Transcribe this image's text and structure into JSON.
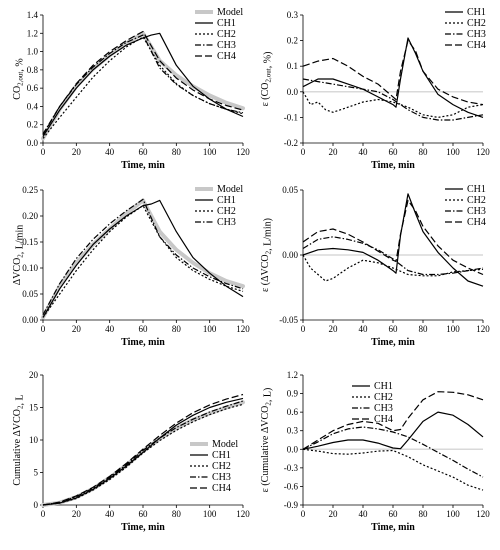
{
  "chart_data": [
    {
      "type": "line",
      "xlabel": "Time, min",
      "ylabel": "CO2,out, %",
      "xlim": [
        0,
        120
      ],
      "ylim": [
        0,
        1.4
      ],
      "xticks": [
        "0",
        "20",
        "40",
        "60",
        "80",
        "100",
        "120"
      ],
      "yticks": [
        "0.0",
        "0.2",
        "0.4",
        "0.6",
        "0.8",
        "1.0",
        "1.2",
        "1.4"
      ],
      "legend_position": "top-right",
      "series": [
        {
          "name": "Model",
          "style": "model",
          "x": [
            0,
            10,
            20,
            30,
            40,
            50,
            60,
            70,
            80,
            90,
            100,
            110,
            120
          ],
          "y": [
            0.05,
            0.37,
            0.62,
            0.81,
            0.96,
            1.09,
            1.2,
            0.9,
            0.74,
            0.62,
            0.52,
            0.44,
            0.38
          ]
        },
        {
          "name": "CH1",
          "style": "solid",
          "x": [
            0,
            10,
            20,
            30,
            40,
            50,
            60,
            65,
            70,
            80,
            90,
            100,
            110,
            120
          ],
          "y": [
            0.07,
            0.36,
            0.6,
            0.8,
            0.95,
            1.07,
            1.15,
            1.18,
            1.2,
            0.85,
            0.62,
            0.48,
            0.37,
            0.29
          ]
        },
        {
          "name": "CH2",
          "style": "short-dash",
          "x": [
            0,
            10,
            20,
            30,
            40,
            50,
            60,
            70,
            80,
            90,
            100,
            110,
            120
          ],
          "y": [
            0.05,
            0.28,
            0.5,
            0.72,
            0.9,
            1.05,
            1.16,
            0.85,
            0.65,
            0.52,
            0.43,
            0.37,
            0.32
          ]
        },
        {
          "name": "CH3",
          "style": "dash-dot",
          "x": [
            0,
            10,
            20,
            30,
            40,
            50,
            60,
            70,
            80,
            90,
            100,
            110,
            120
          ],
          "y": [
            0.1,
            0.4,
            0.64,
            0.83,
            0.98,
            1.1,
            1.18,
            0.82,
            0.64,
            0.52,
            0.43,
            0.37,
            0.33
          ]
        },
        {
          "name": "CH4",
          "style": "long-dash",
          "x": [
            0,
            10,
            20,
            30,
            40,
            50,
            60,
            70,
            80,
            90,
            100,
            110,
            120
          ],
          "y": [
            0.09,
            0.4,
            0.65,
            0.85,
            1.0,
            1.12,
            1.22,
            0.9,
            0.71,
            0.58,
            0.48,
            0.41,
            0.36
          ]
        }
      ]
    },
    {
      "type": "line",
      "xlabel": "Time, min",
      "ylabel": "ε (CO2,out, %)",
      "xlim": [
        0,
        120
      ],
      "ylim": [
        -0.2,
        0.3
      ],
      "xticks": [
        "0",
        "20",
        "40",
        "60",
        "80",
        "100",
        "120"
      ],
      "yticks": [
        "-0.2",
        "-0.1",
        "0.0",
        "0.1",
        "0.2",
        "0.3"
      ],
      "legend_position": "top-right",
      "series": [
        {
          "name": "CH1",
          "style": "solid",
          "x": [
            0,
            10,
            20,
            30,
            40,
            50,
            60,
            62,
            65,
            70,
            75,
            80,
            90,
            100,
            110,
            120
          ],
          "y": [
            0.02,
            0.05,
            0.05,
            0.03,
            0.01,
            -0.02,
            -0.05,
            -0.06,
            0.05,
            0.21,
            0.15,
            0.08,
            -0.01,
            -0.05,
            -0.08,
            -0.1
          ]
        },
        {
          "name": "CH2",
          "style": "short-dash",
          "x": [
            0,
            5,
            10,
            15,
            20,
            30,
            40,
            50,
            60,
            70,
            80,
            90,
            100,
            110,
            120
          ],
          "y": [
            0.0,
            -0.05,
            -0.04,
            -0.07,
            -0.08,
            -0.06,
            -0.04,
            -0.03,
            -0.04,
            -0.06,
            -0.09,
            -0.1,
            -0.09,
            -0.06,
            -0.05
          ]
        },
        {
          "name": "CH3",
          "style": "dash-dot",
          "x": [
            0,
            10,
            20,
            30,
            40,
            50,
            60,
            70,
            80,
            90,
            100,
            110,
            120
          ],
          "y": [
            0.05,
            0.04,
            0.03,
            0.02,
            0.01,
            0.0,
            -0.03,
            -0.07,
            -0.1,
            -0.11,
            -0.11,
            -0.1,
            -0.09
          ]
        },
        {
          "name": "CH4",
          "style": "long-dash",
          "x": [
            0,
            10,
            20,
            30,
            40,
            50,
            60,
            62,
            65,
            70,
            75,
            80,
            90,
            100,
            110,
            120
          ],
          "y": [
            0.1,
            0.12,
            0.13,
            0.1,
            0.06,
            0.03,
            -0.02,
            -0.03,
            0.08,
            0.2,
            0.16,
            0.08,
            0.01,
            -0.02,
            -0.04,
            -0.05
          ]
        }
      ]
    },
    {
      "type": "line",
      "xlabel": "Time, min",
      "ylabel": "ΔVCO2, L/min",
      "xlim": [
        0,
        120
      ],
      "ylim": [
        0,
        0.25
      ],
      "xticks": [
        "0",
        "20",
        "40",
        "60",
        "80",
        "100",
        "120"
      ],
      "yticks": [
        "0.00",
        "0.05",
        "0.10",
        "0.15",
        "0.20",
        "0.25"
      ],
      "legend_position": "top-right",
      "series": [
        {
          "name": "Model",
          "style": "model",
          "x": [
            0,
            10,
            20,
            30,
            40,
            50,
            60,
            70,
            80,
            90,
            100,
            110,
            120
          ],
          "y": [
            0.005,
            0.065,
            0.11,
            0.145,
            0.175,
            0.205,
            0.23,
            0.17,
            0.135,
            0.11,
            0.09,
            0.075,
            0.065
          ]
        },
        {
          "name": "CH1",
          "style": "solid",
          "x": [
            0,
            10,
            20,
            30,
            40,
            50,
            60,
            65,
            70,
            80,
            90,
            100,
            110,
            120
          ],
          "y": [
            0.005,
            0.06,
            0.105,
            0.145,
            0.175,
            0.2,
            0.22,
            0.223,
            0.23,
            0.17,
            0.12,
            0.09,
            0.065,
            0.045
          ]
        },
        {
          "name": "CH2",
          "style": "short-dash",
          "x": [
            0,
            10,
            20,
            30,
            40,
            50,
            60,
            70,
            80,
            90,
            100,
            110,
            120
          ],
          "y": [
            0.005,
            0.05,
            0.095,
            0.135,
            0.17,
            0.198,
            0.22,
            0.16,
            0.12,
            0.095,
            0.078,
            0.065,
            0.055
          ]
        },
        {
          "name": "CH3",
          "style": "dash-dot",
          "x": [
            0,
            10,
            20,
            30,
            40,
            50,
            60,
            70,
            80,
            90,
            100,
            110,
            120
          ],
          "y": [
            0.01,
            0.07,
            0.118,
            0.155,
            0.185,
            0.21,
            0.232,
            0.16,
            0.125,
            0.1,
            0.083,
            0.07,
            0.06
          ]
        }
      ]
    },
    {
      "type": "line",
      "xlabel": "Time, min",
      "ylabel": "ε (ΔVCO2, L/min)",
      "xlim": [
        0,
        120
      ],
      "ylim": [
        -0.05,
        0.05
      ],
      "xticks": [
        "0",
        "20",
        "40",
        "60",
        "80",
        "100",
        "120"
      ],
      "yticks": [
        "-0.05",
        "0.00",
        "0.05"
      ],
      "legend_position": "top-right",
      "series": [
        {
          "name": "CH1",
          "style": "solid",
          "x": [
            0,
            10,
            20,
            30,
            40,
            50,
            60,
            62,
            65,
            70,
            75,
            80,
            90,
            100,
            110,
            120
          ],
          "y": [
            0.0,
            0.004,
            0.005,
            0.004,
            0.002,
            -0.004,
            -0.012,
            -0.014,
            0.015,
            0.047,
            0.032,
            0.018,
            0.002,
            -0.01,
            -0.02,
            -0.024
          ]
        },
        {
          "name": "CH2",
          "style": "short-dash",
          "x": [
            0,
            5,
            10,
            15,
            20,
            30,
            40,
            50,
            60,
            70,
            80,
            90,
            100,
            110,
            120
          ],
          "y": [
            0.0,
            -0.01,
            -0.015,
            -0.02,
            -0.018,
            -0.01,
            -0.004,
            -0.006,
            -0.01,
            -0.015,
            -0.016,
            -0.016,
            -0.013,
            -0.012,
            -0.011
          ]
        },
        {
          "name": "CH3",
          "style": "dash-dot",
          "x": [
            0,
            10,
            20,
            30,
            40,
            50,
            60,
            70,
            80,
            90,
            100,
            110,
            120
          ],
          "y": [
            0.005,
            0.012,
            0.014,
            0.012,
            0.009,
            0.004,
            -0.003,
            -0.012,
            -0.015,
            -0.015,
            -0.014,
            -0.012,
            -0.01
          ]
        },
        {
          "name": "CH4",
          "style": "long-dash",
          "x": [
            0,
            10,
            20,
            30,
            40,
            50,
            60,
            62,
            65,
            70,
            75,
            80,
            90,
            100,
            110,
            120
          ],
          "y": [
            0.01,
            0.018,
            0.02,
            0.016,
            0.01,
            0.003,
            -0.004,
            -0.005,
            0.016,
            0.042,
            0.034,
            0.022,
            0.007,
            -0.004,
            -0.01,
            -0.015
          ]
        }
      ]
    },
    {
      "type": "line",
      "xlabel": "Time, min",
      "ylabel": "Cumulative ΔVCO2, L",
      "xlim": [
        0,
        120
      ],
      "ylim": [
        0,
        20
      ],
      "xticks": [
        "0",
        "20",
        "40",
        "60",
        "80",
        "100",
        "120"
      ],
      "yticks": [
        "0",
        "5",
        "10",
        "15",
        "20"
      ],
      "legend_position": "bottom-right",
      "series": [
        {
          "name": "Model",
          "style": "model",
          "x": [
            0,
            10,
            20,
            30,
            40,
            50,
            60,
            70,
            80,
            90,
            100,
            110,
            120
          ],
          "y": [
            0.0,
            0.35,
            1.2,
            2.5,
            4.2,
            6.1,
            8.3,
            10.2,
            11.8,
            13.1,
            14.1,
            15.0,
            15.8
          ]
        },
        {
          "name": "CH1",
          "style": "solid",
          "x": [
            0,
            10,
            20,
            30,
            40,
            50,
            60,
            70,
            80,
            90,
            100,
            110,
            120
          ],
          "y": [
            0.0,
            0.3,
            1.1,
            2.4,
            4.1,
            6.0,
            8.1,
            10.3,
            12.3,
            13.8,
            15.0,
            15.8,
            16.4
          ]
        },
        {
          "name": "CH2",
          "style": "short-dash",
          "x": [
            0,
            10,
            20,
            30,
            40,
            50,
            60,
            70,
            80,
            90,
            100,
            110,
            120
          ],
          "y": [
            0.0,
            0.3,
            1.0,
            2.3,
            3.9,
            5.8,
            8.0,
            9.9,
            11.5,
            12.8,
            13.9,
            14.8,
            15.5
          ]
        },
        {
          "name": "CH3",
          "style": "dash-dot",
          "x": [
            0,
            10,
            20,
            30,
            40,
            50,
            60,
            70,
            80,
            90,
            100,
            110,
            120
          ],
          "y": [
            0.0,
            0.4,
            1.3,
            2.6,
            4.3,
            6.2,
            8.4,
            10.3,
            11.9,
            13.2,
            14.3,
            15.2,
            16.0
          ]
        },
        {
          "name": "CH4",
          "style": "long-dash",
          "x": [
            0,
            10,
            20,
            30,
            40,
            50,
            60,
            70,
            80,
            90,
            100,
            110,
            120
          ],
          "y": [
            0.0,
            0.45,
            1.4,
            2.7,
            4.4,
            6.4,
            8.6,
            10.7,
            12.6,
            14.2,
            15.4,
            16.3,
            17.0
          ]
        }
      ]
    },
    {
      "type": "line",
      "xlabel": "Time, min",
      "ylabel": "ε (Cumulative ΔVCO2, L)",
      "xlim": [
        0,
        120
      ],
      "ylim": [
        -0.9,
        1.2
      ],
      "xticks": [
        "0",
        "20",
        "40",
        "60",
        "80",
        "100",
        "120"
      ],
      "yticks": [
        "-0.9",
        "-0.6",
        "-0.3",
        "0.0",
        "0.3",
        "0.6",
        "0.9",
        "1.2"
      ],
      "legend_position": "top-left",
      "series": [
        {
          "name": "CH1",
          "style": "solid",
          "x": [
            0,
            10,
            20,
            30,
            40,
            50,
            60,
            65,
            70,
            80,
            90,
            100,
            110,
            120
          ],
          "y": [
            0.0,
            0.05,
            0.11,
            0.15,
            0.15,
            0.1,
            0.02,
            0.01,
            0.15,
            0.45,
            0.6,
            0.55,
            0.4,
            0.2
          ]
        },
        {
          "name": "CH2",
          "style": "short-dash",
          "x": [
            0,
            10,
            20,
            30,
            40,
            50,
            60,
            70,
            80,
            90,
            100,
            110,
            120
          ],
          "y": [
            0.0,
            -0.03,
            -0.07,
            -0.08,
            -0.06,
            -0.03,
            -0.02,
            -0.12,
            -0.25,
            -0.35,
            -0.45,
            -0.58,
            -0.66
          ]
        },
        {
          "name": "CH3",
          "style": "dash-dot",
          "x": [
            0,
            10,
            20,
            30,
            40,
            50,
            60,
            70,
            80,
            90,
            100,
            110,
            120
          ],
          "y": [
            0.0,
            0.12,
            0.25,
            0.33,
            0.36,
            0.33,
            0.28,
            0.2,
            0.08,
            -0.05,
            -0.18,
            -0.32,
            -0.45
          ]
        },
        {
          "name": "CH4",
          "style": "long-dash",
          "x": [
            0,
            10,
            20,
            30,
            40,
            50,
            60,
            65,
            70,
            80,
            90,
            100,
            110,
            120
          ],
          "y": [
            0.0,
            0.15,
            0.3,
            0.4,
            0.45,
            0.42,
            0.3,
            0.32,
            0.5,
            0.8,
            0.93,
            0.92,
            0.88,
            0.8
          ]
        }
      ]
    }
  ],
  "colors": {
    "model": "#c8c8c8",
    "line": "#000000",
    "zero_line": "#d9d9d9",
    "axis": "#000000"
  }
}
